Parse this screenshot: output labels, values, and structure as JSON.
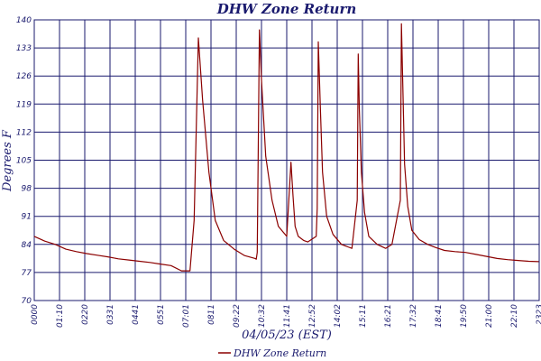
{
  "chart_data": {
    "type": "line",
    "title": "DHW Zone Return",
    "xlabel": "04/05/23 (EST)",
    "ylabel": "Degrees F",
    "ylim": [
      70,
      140
    ],
    "yticks": [
      70,
      77,
      84,
      91,
      98,
      105,
      112,
      119,
      126,
      133,
      140
    ],
    "xtick_labels": [
      "0000",
      "01:10",
      "0220",
      "0331",
      "0441",
      "0551",
      "07:01",
      "0811",
      "09:22",
      "10:32",
      "11:41",
      "12:52",
      "14:02",
      "15:11",
      "16:21",
      "17:32",
      "18:41",
      "19:50",
      "21:00",
      "22:10",
      "2323"
    ],
    "grid": true,
    "legend_position": "bottom-center",
    "series": [
      {
        "name": "DHW Zone Return",
        "color": "#8b0000",
        "x": [
          0,
          0.5,
          1.0,
          1.5,
          2.0,
          2.5,
          3.0,
          3.5,
          4.0,
          4.5,
          5.0,
          5.5,
          6.0,
          6.5,
          7.0,
          7.05,
          7.15,
          7.25,
          7.4,
          7.6,
          7.8,
          8.0,
          8.3,
          8.6,
          9.0,
          9.5,
          10.0,
          10.5,
          10.55,
          10.6,
          10.7,
          10.8,
          11.0,
          11.3,
          11.6,
          12.0,
          12.1,
          12.2,
          12.3,
          12.4,
          12.55,
          12.8,
          13.0,
          13.4,
          13.45,
          13.5,
          13.6,
          13.7,
          13.9,
          14.2,
          14.6,
          14.9,
          15.1,
          15.35,
          15.4,
          15.45,
          15.55,
          15.7,
          15.9,
          16.3,
          16.7,
          17.0,
          17.4,
          17.45,
          17.5,
          17.6,
          17.75,
          17.95,
          18.3,
          18.7,
          19.1,
          19.5,
          20.0,
          20.5,
          21.0,
          21.5,
          22.0,
          22.5,
          23.0,
          23.5,
          23.98
        ],
        "values": [
          86,
          84.8,
          84,
          82.8,
          82.2,
          81.7,
          81.3,
          80.9,
          80.4,
          80.1,
          79.8,
          79.5,
          79.1,
          78.7,
          77.4,
          77.4,
          77.4,
          77.4,
          77.4,
          90,
          135.5,
          120,
          102,
          90,
          85,
          82.8,
          81.2,
          80.5,
          80.3,
          82,
          137.5,
          125,
          106,
          95,
          88.5,
          86,
          95,
          104.5,
          96,
          88.5,
          86,
          85,
          84.6,
          86,
          93,
          134.5,
          118,
          102,
          91,
          86.5,
          84,
          83.4,
          83,
          95,
          131.5,
          118,
          102,
          92,
          86,
          84,
          83,
          84,
          95,
          139,
          128,
          104,
          93.5,
          87.5,
          85.2,
          84,
          83.2,
          82.5,
          82.2,
          82,
          81.5,
          81,
          80.5,
          80.2,
          80,
          79.8,
          79.7
        ]
      }
    ]
  }
}
